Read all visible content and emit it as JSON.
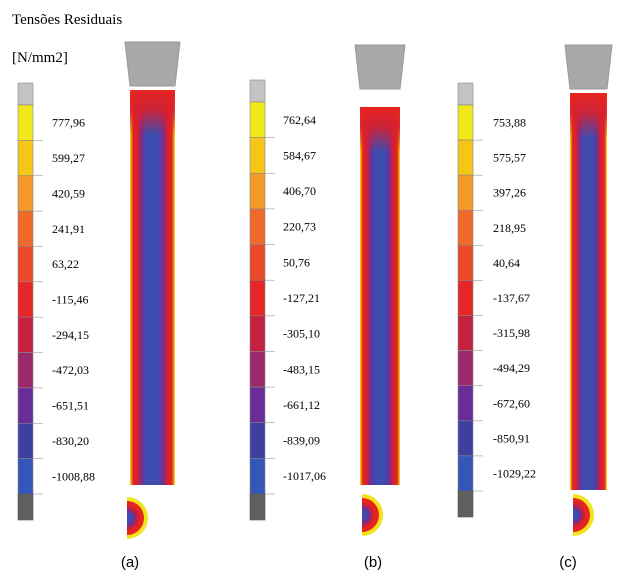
{
  "title": "Tensões Residuais",
  "unit": "[N/mm2]",
  "panels": [
    {
      "caption": "(a)",
      "labels": [
        "777,96",
        "599,27",
        "420,59",
        "241,91",
        "63,22",
        "-115,46",
        "-294,15",
        "-472,03",
        "-651,51",
        "-830,20",
        "-1008,88"
      ]
    },
    {
      "caption": "(b)",
      "labels": [
        "762,64",
        "584,67",
        "406,70",
        "220,73",
        "50,76",
        "-127,21",
        "-305,10",
        "-483,15",
        "-661,12",
        "-839,09",
        "-1017,06"
      ]
    },
    {
      "caption": "(c)",
      "labels": [
        "753,88",
        "575,57",
        "397,26",
        "218,95",
        "40,64",
        "-137,67",
        "-315,98",
        "-494,29",
        "-672,60",
        "-850,91",
        "-1029,22"
      ]
    }
  ]
}
